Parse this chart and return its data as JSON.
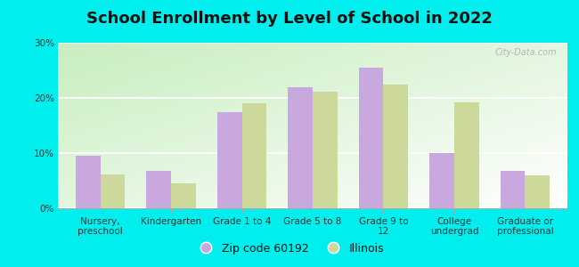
{
  "title": "School Enrollment by Level of School in 2022",
  "categories": [
    "Nursery,\npreschool",
    "Kindergarten",
    "Grade 1 to 4",
    "Grade 5 to 8",
    "Grade 9 to\n12",
    "College\nundergrad",
    "Graduate or\nprofessional"
  ],
  "zip_values": [
    9.5,
    6.8,
    17.5,
    22.0,
    25.5,
    10.0,
    6.8
  ],
  "il_values": [
    6.2,
    4.5,
    19.0,
    21.2,
    22.5,
    19.2,
    6.0
  ],
  "zip_color": "#c9a8e0",
  "il_color": "#ccd99a",
  "background_color": "#00EEEE",
  "ylim": [
    0,
    30
  ],
  "yticks": [
    0,
    10,
    20,
    30
  ],
  "ytick_labels": [
    "0%",
    "10%",
    "20%",
    "30%"
  ],
  "zip_label": "Zip code 60192",
  "il_label": "Illinois",
  "bar_width": 0.35,
  "title_fontsize": 13,
  "tick_fontsize": 7.5,
  "legend_fontsize": 9,
  "watermark": "City-Data.com"
}
